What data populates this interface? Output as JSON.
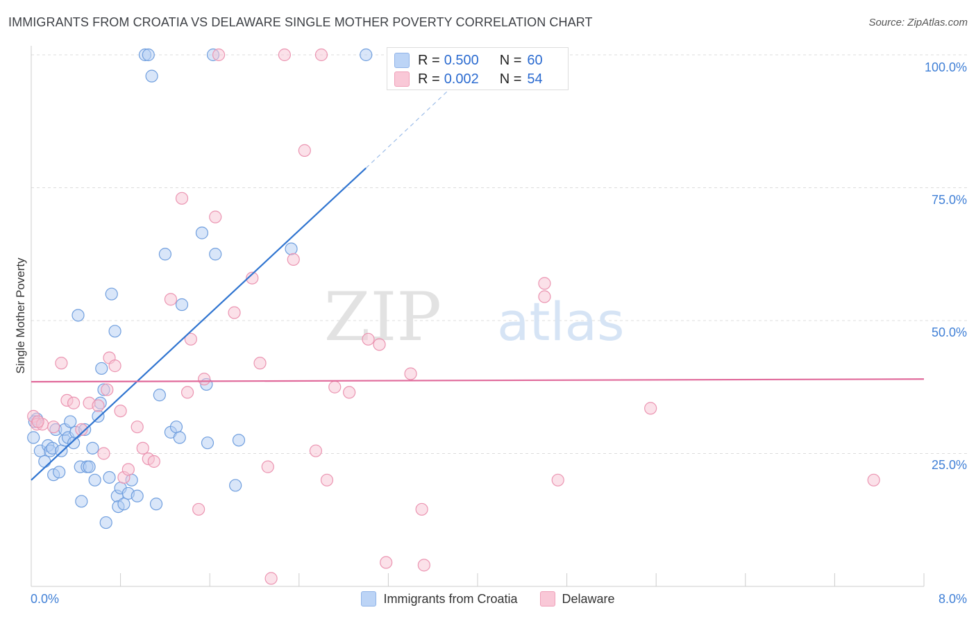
{
  "title": "IMMIGRANTS FROM CROATIA VS DELAWARE SINGLE MOTHER POVERTY CORRELATION CHART",
  "source": "Source: ZipAtlas.com",
  "watermark": {
    "part1": "ZIP",
    "part2": "atlas"
  },
  "legend_box": {
    "rows": [
      {
        "r_label": "R =",
        "r_value": "0.500",
        "n_label": "N =",
        "n_value": "60"
      },
      {
        "r_label": "R =",
        "r_value": "0.002",
        "n_label": "N =",
        "n_value": "54"
      }
    ]
  },
  "legend_bottom": [
    {
      "label": "Immigrants from Croatia"
    },
    {
      "label": "Delaware"
    }
  ],
  "chart_data": {
    "type": "scatter",
    "title": "IMMIGRANTS FROM CROATIA VS DELAWARE SINGLE MOTHER POVERTY CORRELATION CHART",
    "xlabel": "",
    "ylabel": "Single Mother Poverty",
    "xlim": [
      0,
      8
    ],
    "ylim": [
      0,
      100
    ],
    "x_tick_labels": [
      "0.0%",
      "8.0%"
    ],
    "y_tick_labels": [
      "100.0%",
      "75.0%",
      "50.0%",
      "25.0%"
    ],
    "y_ticks": [
      100,
      75,
      50,
      25
    ],
    "grid": true,
    "legend_position": "top-center",
    "colors": {
      "blue_fill": "#b3cdf3",
      "blue_stroke": "#6f9ede",
      "blue_line": "#2f74d0",
      "pink_fill": "#f7c3d3",
      "pink_stroke": "#eb94b1",
      "pink_line": "#e0699a",
      "tick_label": "#3f7fd6"
    },
    "series": [
      {
        "name": "Immigrants from Croatia",
        "color": "#6f9ede",
        "trend": {
          "x": [
            0.0,
            3.0
          ],
          "y": [
            20.0,
            78.7
          ],
          "dashed_to": [
            6.8,
            153
          ]
        },
        "points": [
          [
            0.02,
            28
          ],
          [
            0.05,
            31.5
          ],
          [
            0.08,
            25.5
          ],
          [
            0.12,
            23.5
          ],
          [
            0.15,
            26.5
          ],
          [
            0.17,
            25.5
          ],
          [
            0.19,
            26
          ],
          [
            0.2,
            21
          ],
          [
            0.22,
            29.5
          ],
          [
            0.25,
            21.5
          ],
          [
            0.27,
            25.5
          ],
          [
            0.3,
            27.5
          ],
          [
            0.3,
            29.5
          ],
          [
            0.33,
            28
          ],
          [
            0.35,
            31
          ],
          [
            0.38,
            27
          ],
          [
            0.4,
            29
          ],
          [
            0.42,
            51
          ],
          [
            0.44,
            22.5
          ],
          [
            0.45,
            16
          ],
          [
            0.48,
            29.5
          ],
          [
            0.5,
            22.5
          ],
          [
            0.52,
            22.5
          ],
          [
            0.55,
            26
          ],
          [
            0.57,
            20
          ],
          [
            0.6,
            32
          ],
          [
            0.62,
            34.5
          ],
          [
            0.63,
            41
          ],
          [
            0.65,
            37
          ],
          [
            0.67,
            12
          ],
          [
            0.7,
            20.5
          ],
          [
            0.72,
            55
          ],
          [
            0.75,
            48
          ],
          [
            0.77,
            17
          ],
          [
            0.78,
            15
          ],
          [
            0.8,
            18.5
          ],
          [
            0.83,
            15.5
          ],
          [
            0.87,
            17.5
          ],
          [
            0.9,
            20
          ],
          [
            0.95,
            17
          ],
          [
            1.02,
            100
          ],
          [
            1.05,
            100
          ],
          [
            1.08,
            96
          ],
          [
            1.12,
            15.5
          ],
          [
            1.15,
            36
          ],
          [
            1.2,
            62.5
          ],
          [
            1.25,
            29
          ],
          [
            1.3,
            30
          ],
          [
            1.33,
            28
          ],
          [
            1.35,
            53
          ],
          [
            1.53,
            66.5
          ],
          [
            1.57,
            38
          ],
          [
            1.58,
            27
          ],
          [
            1.63,
            100
          ],
          [
            1.65,
            62.5
          ],
          [
            1.83,
            19
          ],
          [
            1.86,
            27.5
          ],
          [
            2.33,
            63.5
          ],
          [
            3.0,
            100
          ],
          [
            0.03,
            31
          ]
        ]
      },
      {
        "name": "Delaware",
        "color": "#eb94b1",
        "trend": {
          "x": [
            0.0,
            8.0
          ],
          "y": [
            38.5,
            39.0
          ]
        },
        "points": [
          [
            0.02,
            32
          ],
          [
            0.05,
            30.5
          ],
          [
            0.1,
            30.5
          ],
          [
            0.2,
            30
          ],
          [
            0.27,
            42
          ],
          [
            0.32,
            35
          ],
          [
            0.38,
            34.5
          ],
          [
            0.45,
            29.5
          ],
          [
            0.52,
            34.5
          ],
          [
            0.6,
            34
          ],
          [
            0.65,
            25
          ],
          [
            0.68,
            37
          ],
          [
            0.7,
            43
          ],
          [
            0.75,
            41.5
          ],
          [
            0.8,
            33
          ],
          [
            0.83,
            20.5
          ],
          [
            0.87,
            22
          ],
          [
            0.95,
            30
          ],
          [
            1.0,
            26
          ],
          [
            1.05,
            24
          ],
          [
            1.1,
            23.5
          ],
          [
            1.25,
            54
          ],
          [
            1.35,
            73
          ],
          [
            1.4,
            36.5
          ],
          [
            1.43,
            46.5
          ],
          [
            1.5,
            14.5
          ],
          [
            1.55,
            39
          ],
          [
            1.65,
            69.5
          ],
          [
            1.82,
            51.5
          ],
          [
            1.98,
            58
          ],
          [
            2.05,
            42
          ],
          [
            2.12,
            22.5
          ],
          [
            2.15,
            1.5
          ],
          [
            2.27,
            100
          ],
          [
            2.35,
            61.5
          ],
          [
            2.45,
            82
          ],
          [
            2.55,
            25.5
          ],
          [
            2.6,
            100
          ],
          [
            2.65,
            20
          ],
          [
            2.72,
            37.5
          ],
          [
            2.85,
            36.5
          ],
          [
            3.02,
            46.5
          ],
          [
            3.12,
            45.5
          ],
          [
            3.18,
            4.5
          ],
          [
            3.4,
            40
          ],
          [
            3.5,
            14.5
          ],
          [
            3.52,
            4
          ],
          [
            4.6,
            57
          ],
          [
            4.6,
            54.5
          ],
          [
            4.72,
            20
          ],
          [
            5.55,
            33.5
          ],
          [
            7.55,
            20
          ],
          [
            1.68,
            100
          ],
          [
            0.06,
            31
          ]
        ]
      }
    ]
  }
}
